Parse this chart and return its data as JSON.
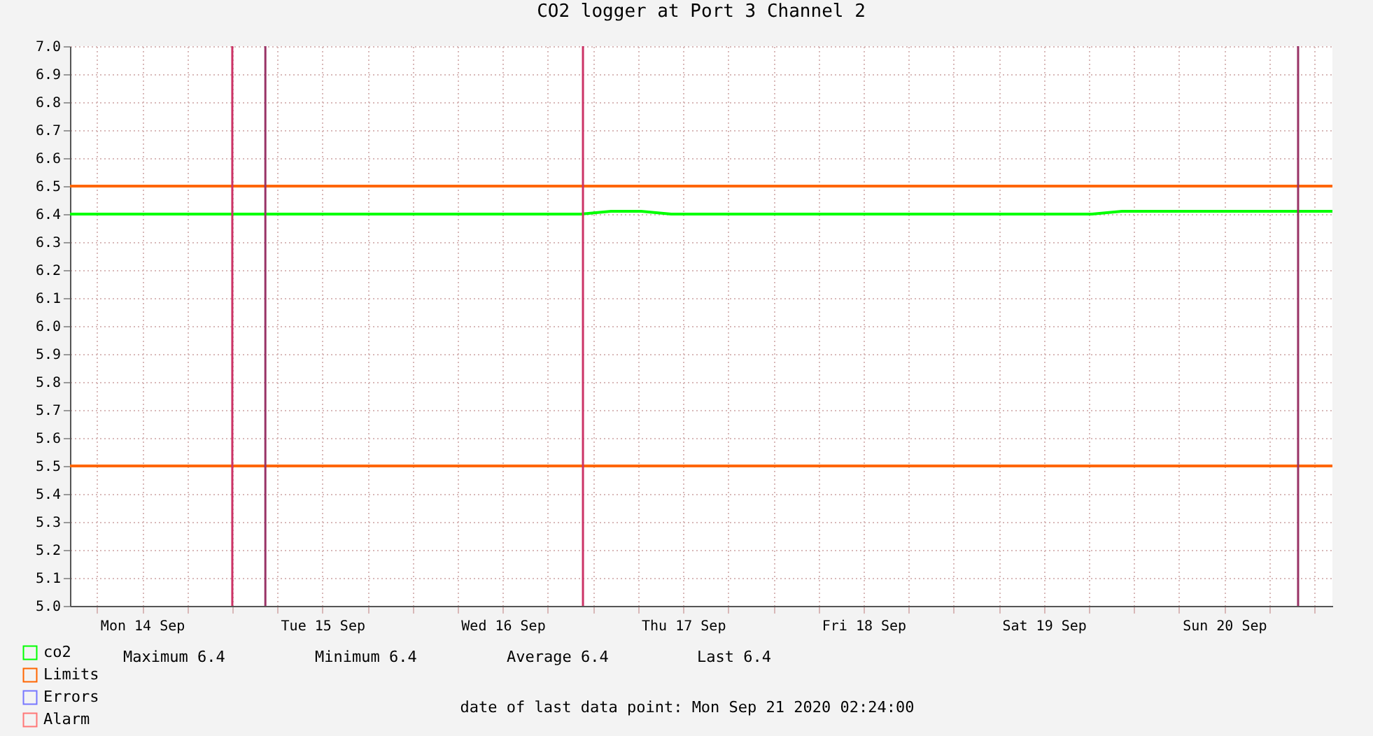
{
  "chart_data": {
    "type": "line",
    "title": "CO2 logger at Port 3 Channel 2",
    "x": [
      "2020-09-14T02:24",
      "2020-09-14T06:24",
      "2020-09-14T10:24",
      "2020-09-14T14:24",
      "2020-09-14T18:24",
      "2020-09-14T22:24",
      "2020-09-15T02:24",
      "2020-09-15T06:24",
      "2020-09-15T10:24",
      "2020-09-15T14:24",
      "2020-09-15T18:24",
      "2020-09-15T22:24",
      "2020-09-16T02:24",
      "2020-09-16T06:24",
      "2020-09-16T10:24",
      "2020-09-16T14:24",
      "2020-09-16T18:24",
      "2020-09-16T22:24",
      "2020-09-17T02:24",
      "2020-09-17T06:24",
      "2020-09-17T10:24",
      "2020-09-17T14:24",
      "2020-09-17T18:24",
      "2020-09-17T22:24",
      "2020-09-18T02:24",
      "2020-09-18T06:24",
      "2020-09-18T10:24",
      "2020-09-18T14:24",
      "2020-09-18T18:24",
      "2020-09-18T22:24",
      "2020-09-19T02:24",
      "2020-09-19T06:24",
      "2020-09-19T10:24",
      "2020-09-19T14:24",
      "2020-09-19T18:24",
      "2020-09-19T22:24",
      "2020-09-20T02:24",
      "2020-09-20T06:24",
      "2020-09-20T10:24",
      "2020-09-20T14:24",
      "2020-09-20T18:24",
      "2020-09-20T22:24",
      "2020-09-21T02:24"
    ],
    "series": [
      {
        "name": "co2",
        "color": "#00ff00",
        "values": [
          6.4,
          6.4,
          6.4,
          6.4,
          6.4,
          6.4,
          6.4,
          6.4,
          6.4,
          6.4,
          6.4,
          6.4,
          6.4,
          6.4,
          6.4,
          6.4,
          6.4,
          6.4,
          6.41,
          6.41,
          6.4,
          6.4,
          6.4,
          6.4,
          6.4,
          6.4,
          6.4,
          6.4,
          6.4,
          6.4,
          6.4,
          6.4,
          6.4,
          6.4,
          6.4,
          6.41,
          6.41,
          6.41,
          6.41,
          6.41,
          6.41,
          6.41,
          6.41
        ]
      },
      {
        "name": "Limits",
        "color": "#ff6600",
        "x": [
          "2020-09-14T02:24",
          "2020-09-21T02:24"
        ],
        "values": [
          6.5,
          6.5
        ]
      },
      {
        "color": "#ff6600",
        "x": [
          "2020-09-14T02:24",
          "2020-09-21T02:24"
        ],
        "values": [
          5.5,
          5.5
        ]
      },
      {
        "name": "Errors",
        "color": "#7777ff",
        "values": [
          null,
          null,
          null,
          null,
          null,
          null,
          null,
          null,
          null,
          null,
          null,
          null,
          null,
          null,
          null,
          null,
          null,
          null,
          null,
          null,
          null,
          null,
          null,
          null,
          null,
          null,
          null,
          null,
          null,
          null,
          null,
          null,
          null,
          null,
          null,
          null,
          null,
          null,
          null,
          null,
          null,
          null,
          null
        ]
      },
      {
        "name": "Alarm",
        "color": "#ff7777",
        "values": [
          null,
          null,
          null,
          null,
          null,
          null,
          null,
          null,
          null,
          null,
          null,
          null,
          null,
          null,
          null,
          null,
          null,
          null,
          null,
          null,
          null,
          null,
          null,
          null,
          null,
          null,
          null,
          null,
          null,
          null,
          null,
          null,
          null,
          null,
          null,
          null,
          null,
          null,
          null,
          null,
          null,
          null,
          null
        ]
      }
    ],
    "xlim": [
      "2020-09-14T02:24",
      "2020-09-21T02:24"
    ],
    "xticks": [
      {
        "value": "2020-09-14T06:00",
        "label": null
      },
      {
        "value": "2020-09-14T12:00",
        "label": "Mon 14 Sep"
      },
      {
        "value": "2020-09-14T18:00",
        "label": null
      },
      {
        "value": "2020-09-15T00:00",
        "label": null
      },
      {
        "value": "2020-09-15T06:00",
        "label": null
      },
      {
        "value": "2020-09-15T12:00",
        "label": "Tue 15 Sep"
      },
      {
        "value": "2020-09-15T18:00",
        "label": null
      },
      {
        "value": "2020-09-16T00:00",
        "label": null
      },
      {
        "value": "2020-09-16T06:00",
        "label": null
      },
      {
        "value": "2020-09-16T12:00",
        "label": "Wed 16 Sep"
      },
      {
        "value": "2020-09-16T18:00",
        "label": null
      },
      {
        "value": "2020-09-17T00:00",
        "label": null
      },
      {
        "value": "2020-09-17T06:00",
        "label": null
      },
      {
        "value": "2020-09-17T12:00",
        "label": "Thu 17 Sep"
      },
      {
        "value": "2020-09-17T18:00",
        "label": null
      },
      {
        "value": "2020-09-18T00:00",
        "label": null
      },
      {
        "value": "2020-09-18T06:00",
        "label": null
      },
      {
        "value": "2020-09-18T12:00",
        "label": "Fri 18 Sep"
      },
      {
        "value": "2020-09-18T18:00",
        "label": null
      },
      {
        "value": "2020-09-19T00:00",
        "label": null
      },
      {
        "value": "2020-09-19T06:00",
        "label": null
      },
      {
        "value": "2020-09-19T12:00",
        "label": "Sat 19 Sep"
      },
      {
        "value": "2020-09-19T18:00",
        "label": null
      },
      {
        "value": "2020-09-20T00:00",
        "label": null
      },
      {
        "value": "2020-09-20T06:00",
        "label": null
      },
      {
        "value": "2020-09-20T12:00",
        "label": "Sun 20 Sep"
      },
      {
        "value": "2020-09-20T18:00",
        "label": null
      },
      {
        "value": "2020-09-21T00:00",
        "label": null
      }
    ],
    "ylim": [
      5.0,
      7.0
    ],
    "yticks": [
      {
        "value": 5,
        "label": "5.0"
      },
      5.1,
      5.2,
      5.3,
      5.4,
      5.5,
      5.6,
      5.7,
      5.8,
      5.9,
      {
        "value": 6,
        "label": "6.0"
      },
      6.1,
      6.2,
      6.3,
      6.4,
      6.5,
      6.6,
      6.7,
      6.8,
      6.9,
      {
        "value": 7,
        "label": "7.0"
      }
    ],
    "grid": true,
    "legend": "bottom",
    "ref_lines": [
      {
        "axis": "x",
        "value": "2020-09-15T00:00",
        "color": "#cc3366"
      },
      {
        "axis": "x",
        "value": "2020-09-15T04:24",
        "color": "#993366"
      },
      {
        "axis": "x",
        "value": "2020-09-16T22:40",
        "color": "#cc3366"
      },
      {
        "axis": "x",
        "value": "2020-09-20T21:50",
        "color": "#993366"
      }
    ],
    "annotations": [
      "Maximum   6.4",
      "Minimum   6.4",
      "Average   6.4",
      "Last   6.4",
      "date of last data point:  Mon Sep 21 2020 02:24:00"
    ]
  }
}
